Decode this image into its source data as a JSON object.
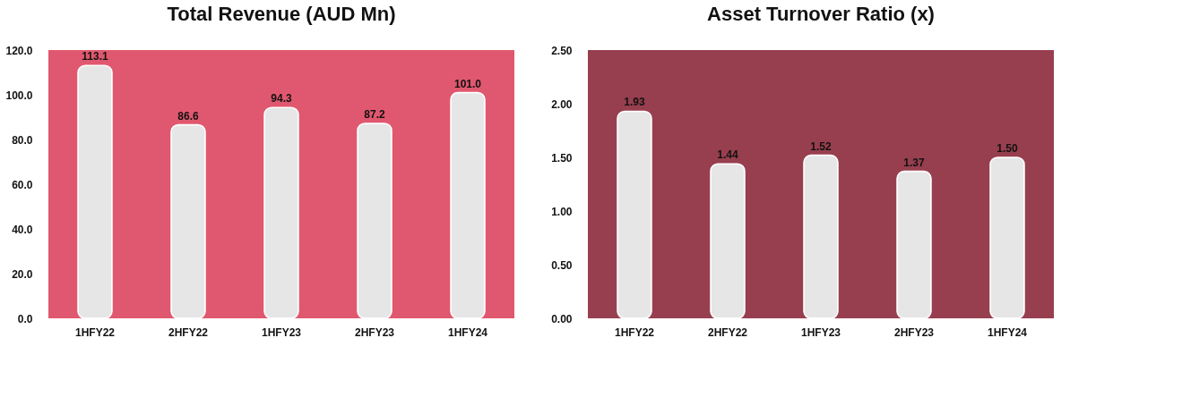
{
  "chart_data": [
    {
      "type": "bar",
      "title": "Total Revenue (AUD Mn)",
      "categories": [
        "1HFY22",
        "2HFY22",
        "1HFY23",
        "2HFY23",
        "1HFY24"
      ],
      "series": [
        {
          "color": "#e6e6e6",
          "values": [
            113.1,
            86.6,
            94.3,
            87.2,
            101.0
          ],
          "value_labels": [
            "113.1",
            "86.6",
            "94.3",
            "87.2",
            "101.0"
          ]
        }
      ],
      "ylim": [
        0,
        120
      ],
      "yticks": [
        {
          "value": 0,
          "label": "0.0"
        },
        {
          "value": 20,
          "label": "20.0"
        },
        {
          "value": 40,
          "label": "40.0"
        },
        {
          "value": 60,
          "label": "60.0"
        },
        {
          "value": 80,
          "label": "80.0"
        },
        {
          "value": 100,
          "label": "100.0"
        },
        {
          "value": 120,
          "label": "120.0"
        }
      ],
      "grid": false
    },
    {
      "type": "bar",
      "title": "Asset Turnover Ratio (x)",
      "categories": [
        "1HFY22",
        "2HFY22",
        "1HFY23",
        "2HFY23",
        "1HFY24"
      ],
      "series": [
        {
          "color": "#e6e6e6",
          "values": [
            1.93,
            1.44,
            1.52,
            1.37,
            1.5
          ],
          "value_labels": [
            "1.93",
            "1.44",
            "1.52",
            "1.37",
            "1.50"
          ]
        }
      ],
      "ylim": [
        0,
        2.5
      ],
      "yticks": [
        {
          "value": 0,
          "label": "0.00"
        },
        {
          "value": 0.5,
          "label": "0.50"
        },
        {
          "value": 1,
          "label": "1.00"
        },
        {
          "value": 1.5,
          "label": "1.50"
        },
        {
          "value": 2,
          "label": "2.00"
        },
        {
          "value": 2.5,
          "label": "2.50"
        }
      ],
      "grid": false
    }
  ]
}
